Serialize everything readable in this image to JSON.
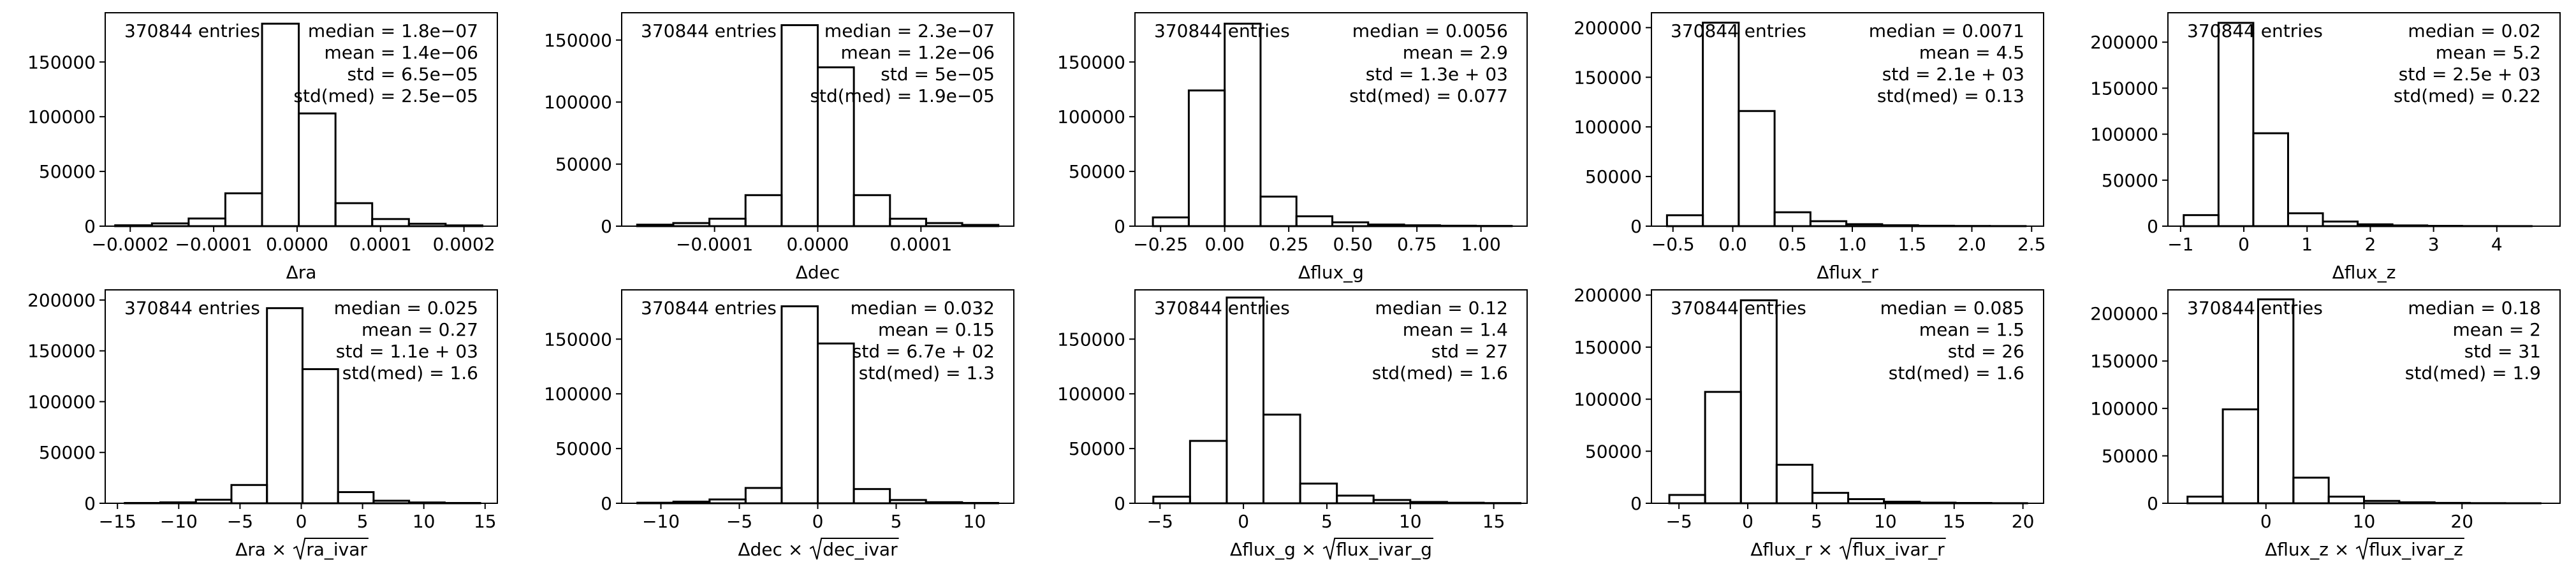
{
  "figure": {
    "background": "#ffffff",
    "line_color": "#000000"
  },
  "chart_data": [
    {
      "type": "histogram",
      "entries_text": "370844 entries",
      "stats": [
        "median = 1.8e−07",
        "mean = 1.4e−06",
        "std = 6.5e−05",
        "std(med) = 2.5e−05"
      ],
      "xlabel": "Δra",
      "xlim": [
        -0.00023,
        0.00024
      ],
      "ylim": [
        0,
        195000
      ],
      "xticks": [
        -0.0002,
        -0.0001,
        0.0,
        0.0001,
        0.0002
      ],
      "xtick_labels": [
        "−0.0002",
        "−0.0001",
        "0.0000",
        "0.0001",
        "0.0002"
      ],
      "yticks": [
        0,
        50000,
        100000,
        150000
      ],
      "ytick_labels": [
        "0",
        "50000",
        "100000",
        "150000"
      ],
      "bin_edges": [
        -0.000218,
        -0.000174,
        -0.00013,
        -8.6e-05,
        -4.2e-05,
        2e-06,
        4.6e-05,
        9e-05,
        0.000134,
        0.000178,
        0.000222
      ],
      "counts": [
        800,
        2500,
        7000,
        30000,
        185000,
        103000,
        21000,
        6500,
        2200,
        700
      ]
    },
    {
      "type": "histogram",
      "entries_text": "370844 entries",
      "stats": [
        "median = 2.3e−07",
        "mean = 1.2e−06",
        "std = 5e−05",
        "std(med) = 1.9e−05"
      ],
      "xlabel": "Δdec",
      "xlim": [
        -0.00019,
        0.00019
      ],
      "ylim": [
        0,
        172000
      ],
      "xticks": [
        -0.0001,
        0.0,
        0.0001
      ],
      "xtick_labels": [
        "−0.0001",
        "0.0000",
        "0.0001"
      ],
      "yticks": [
        0,
        50000,
        100000,
        150000
      ],
      "ytick_labels": [
        "0",
        "50000",
        "100000",
        "150000"
      ],
      "bin_edges": [
        -0.000175,
        -0.00014,
        -0.000105,
        -7e-05,
        -3.5e-05,
        0.0,
        3.5e-05,
        7e-05,
        0.000105,
        0.00014,
        0.000175
      ],
      "counts": [
        1200,
        2500,
        6000,
        25000,
        162000,
        128000,
        25000,
        6000,
        2500,
        1000
      ]
    },
    {
      "type": "histogram",
      "entries_text": "370844 entries",
      "stats": [
        "median = 0.0056",
        "mean = 2.9",
        "std = 1.3e + 03",
        "std(med) = 0.077"
      ],
      "xlabel": "Δflux_g",
      "xlim": [
        -0.35,
        1.18
      ],
      "ylim": [
        0,
        195000
      ],
      "xticks": [
        -0.25,
        0.0,
        0.25,
        0.5,
        0.75,
        1.0
      ],
      "xtick_labels": [
        "−0.25",
        "0.00",
        "0.25",
        "0.50",
        "0.75",
        "1.00"
      ],
      "yticks": [
        0,
        50000,
        100000,
        150000
      ],
      "ytick_labels": [
        "0",
        "50000",
        "100000",
        "150000"
      ],
      "bin_edges": [
        -0.28,
        -0.14,
        0.0,
        0.14,
        0.28,
        0.42,
        0.56,
        0.7,
        0.84,
        0.98,
        1.12
      ],
      "counts": [
        8000,
        124000,
        185000,
        27000,
        9000,
        3500,
        1500,
        800,
        400,
        200
      ]
    },
    {
      "type": "histogram",
      "entries_text": "370844 entries",
      "stats": [
        "median = 0.0071",
        "mean = 4.5",
        "std = 2.1e + 03",
        "std(med) = 0.13"
      ],
      "xlabel": "Δflux_r",
      "xlim": [
        -0.68,
        2.6
      ],
      "ylim": [
        0,
        215000
      ],
      "xticks": [
        -0.5,
        0.0,
        0.5,
        1.0,
        1.5,
        2.0,
        2.5
      ],
      "xtick_labels": [
        "−0.5",
        "0.0",
        "0.5",
        "1.0",
        "1.5",
        "2.0",
        "2.5"
      ],
      "yticks": [
        0,
        50000,
        100000,
        150000,
        200000
      ],
      "ytick_labels": [
        "0",
        "50000",
        "100000",
        "150000",
        "200000"
      ],
      "bin_edges": [
        -0.55,
        -0.25,
        0.05,
        0.35,
        0.65,
        0.95,
        1.25,
        1.55,
        1.85,
        2.15,
        2.45
      ],
      "counts": [
        11000,
        205000,
        116000,
        14000,
        5000,
        2000,
        900,
        400,
        200,
        100
      ]
    },
    {
      "type": "histogram",
      "entries_text": "370844 entries",
      "stats": [
        "median = 0.02",
        "mean = 5.2",
        "std = 2.5e + 03",
        "std(med) = 0.22"
      ],
      "xlabel": "Δflux_z",
      "xlim": [
        -1.2,
        5.0
      ],
      "ylim": [
        0,
        232000
      ],
      "xticks": [
        -1,
        0,
        1,
        2,
        3,
        4
      ],
      "xtick_labels": [
        "−1",
        "0",
        "1",
        "2",
        "3",
        "4"
      ],
      "yticks": [
        0,
        50000,
        100000,
        150000,
        200000
      ],
      "ytick_labels": [
        "0",
        "50000",
        "100000",
        "150000",
        "200000"
      ],
      "bin_edges": [
        -0.95,
        -0.4,
        0.15,
        0.7,
        1.25,
        1.8,
        2.35,
        2.9,
        3.45,
        4.0,
        4.55
      ],
      "counts": [
        12000,
        221000,
        101000,
        14000,
        5000,
        2000,
        800,
        300,
        100,
        50
      ]
    },
    {
      "type": "histogram",
      "entries_text": "370844 entries",
      "stats": [
        "median = 0.025",
        "mean = 0.27",
        "std = 1.1e + 03",
        "std(med) = 1.6"
      ],
      "xlabel": "Δra × √ra_ivar",
      "xlabel_parts": [
        "Δra × ",
        "ra_ivar"
      ],
      "xlim": [
        -16,
        16
      ],
      "ylim": [
        0,
        210000
      ],
      "xticks": [
        -15,
        -10,
        -5,
        0,
        5,
        10,
        15
      ],
      "xtick_labels": [
        "−15",
        "−10",
        "−5",
        "0",
        "5",
        "10",
        "15"
      ],
      "yticks": [
        0,
        50000,
        100000,
        150000,
        200000
      ],
      "ytick_labels": [
        "0",
        "50000",
        "100000",
        "150000",
        "200000"
      ],
      "bin_edges": [
        -14.4,
        -11.5,
        -8.6,
        -5.7,
        -2.8,
        0.1,
        3.0,
        5.9,
        8.8,
        11.7,
        14.6
      ],
      "counts": [
        300,
        900,
        3500,
        18000,
        192000,
        132000,
        11000,
        2500,
        800,
        300
      ]
    },
    {
      "type": "histogram",
      "entries_text": "370844 entries",
      "stats": [
        "median = 0.032",
        "mean = 0.15",
        "std = 6.7e + 02",
        "std(med) = 1.3"
      ],
      "xlabel": "Δdec × √dec_ivar",
      "xlabel_parts": [
        "Δdec × ",
        "dec_ivar"
      ],
      "xlim": [
        -12.5,
        12.5
      ],
      "ylim": [
        0,
        195000
      ],
      "xticks": [
        -10,
        -5,
        0,
        5,
        10
      ],
      "xtick_labels": [
        "−10",
        "−5",
        "0",
        "5",
        "10"
      ],
      "yticks": [
        0,
        50000,
        100000,
        150000
      ],
      "ytick_labels": [
        "0",
        "50000",
        "100000",
        "150000"
      ],
      "bin_edges": [
        -11.5,
        -9.2,
        -6.9,
        -4.6,
        -2.3,
        0.0,
        2.3,
        4.6,
        6.9,
        9.2,
        11.5
      ],
      "counts": [
        500,
        1500,
        3500,
        14000,
        180000,
        146000,
        13000,
        3000,
        1000,
        300
      ]
    },
    {
      "type": "histogram",
      "entries_text": "370844 entries",
      "stats": [
        "median = 0.12",
        "mean = 1.4",
        "std = 27",
        "std(med) = 1.6"
      ],
      "xlabel": "Δflux_g × √flux_ivar_g",
      "xlabel_parts": [
        "Δflux_g × ",
        "flux_ivar_g"
      ],
      "xlim": [
        -6.5,
        17
      ],
      "ylim": [
        0,
        195000
      ],
      "xticks": [
        -5,
        0,
        5,
        10,
        15
      ],
      "xtick_labels": [
        "−5",
        "0",
        "5",
        "10",
        "15"
      ],
      "yticks": [
        0,
        50000,
        100000,
        150000
      ],
      "ytick_labels": [
        "0",
        "50000",
        "100000",
        "150000"
      ],
      "bin_edges": [
        -5.4,
        -3.2,
        -1.0,
        1.2,
        3.4,
        5.6,
        7.8,
        10.0,
        12.2,
        14.4,
        16.6
      ],
      "counts": [
        6000,
        57000,
        188000,
        81000,
        18000,
        7000,
        3000,
        1200,
        500,
        200
      ]
    },
    {
      "type": "histogram",
      "entries_text": "370844 entries",
      "stats": [
        "median = 0.085",
        "mean = 1.5",
        "std = 26",
        "std(med) = 1.6"
      ],
      "xlabel": "Δflux_r × √flux_ivar_r",
      "xlabel_parts": [
        "Δflux_r × ",
        "flux_ivar_r"
      ],
      "xlim": [
        -7,
        21.5
      ],
      "ylim": [
        0,
        205000
      ],
      "xticks": [
        -5,
        0,
        5,
        10,
        15,
        20
      ],
      "xtick_labels": [
        "−5",
        "0",
        "5",
        "10",
        "15",
        "20"
      ],
      "yticks": [
        0,
        50000,
        100000,
        150000,
        200000
      ],
      "ytick_labels": [
        "0",
        "50000",
        "100000",
        "150000",
        "200000"
      ],
      "bin_edges": [
        -5.7,
        -3.1,
        -0.5,
        2.1,
        4.7,
        7.3,
        9.9,
        12.5,
        15.1,
        17.7,
        20.3
      ],
      "counts": [
        8000,
        107000,
        195000,
        37000,
        10000,
        4000,
        1500,
        600,
        300,
        100
      ]
    },
    {
      "type": "histogram",
      "entries_text": "370844 entries",
      "stats": [
        "median = 0.18",
        "mean = 2",
        "std = 31",
        "std(med) = 1.9"
      ],
      "xlabel": "Δflux_z × √flux_ivar_z",
      "xlabel_parts": [
        "Δflux_z × ",
        "flux_ivar_z"
      ],
      "xlim": [
        -10,
        30
      ],
      "ylim": [
        0,
        225000
      ],
      "xticks": [
        0,
        10,
        20
      ],
      "xtick_labels": [
        "0",
        "10",
        "20"
      ],
      "yticks": [
        0,
        50000,
        100000,
        150000,
        200000
      ],
      "ytick_labels": [
        "0",
        "50000",
        "100000",
        "150000",
        "200000"
      ],
      "bin_edges": [
        -8.0,
        -4.4,
        -0.8,
        2.8,
        6.4,
        10.0,
        13.6,
        17.2,
        20.8,
        24.4,
        28.0
      ],
      "counts": [
        7000,
        99000,
        215000,
        27000,
        7000,
        2500,
        1000,
        400,
        150,
        50
      ]
    }
  ]
}
